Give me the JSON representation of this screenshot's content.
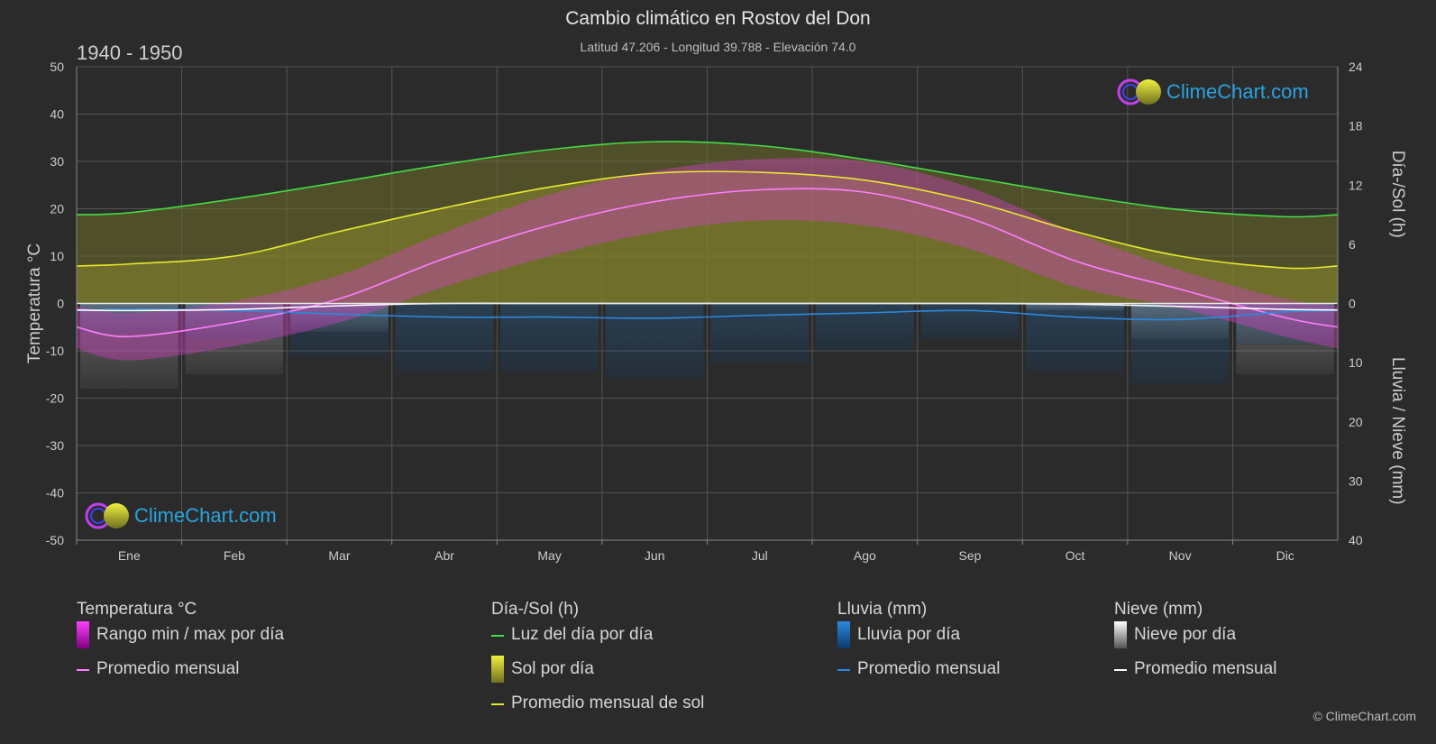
{
  "title": "Cambio climático en Rostov del Don",
  "subtitle": "Latitud 47.206 - Longitud 39.788 - Elevación 74.0",
  "year_range": "1940 - 1950",
  "logo_text": "ClimeChart.com",
  "copyright": "© ClimeChart.com",
  "colors": {
    "background": "#2b2b2b",
    "temp_range": "#e020e0",
    "temp_avg": "#ff7fff",
    "daylight": "#44dd44",
    "sun_fill": "#c8c832",
    "sun_avg": "#e8e830",
    "rain": "#1e78c8",
    "rain_avg": "#2a8ae0",
    "snow": "#b0b0b0",
    "snow_avg": "#ffffff"
  },
  "chart_data": {
    "type": "line",
    "months": [
      "Ene",
      "Feb",
      "Mar",
      "Abr",
      "May",
      "Jun",
      "Jul",
      "Ago",
      "Sep",
      "Oct",
      "Nov",
      "Dic"
    ],
    "left_axis": {
      "label": "Temperatura °C",
      "range": [
        -50,
        50
      ],
      "ticks": [
        50,
        40,
        30,
        20,
        10,
        0,
        -10,
        -20,
        -30,
        -40,
        -50
      ]
    },
    "right_axis_top": {
      "label": "Día-/Sol (h)",
      "range": [
        0,
        24
      ],
      "ticks": [
        24,
        18,
        12,
        6,
        0
      ]
    },
    "right_axis_bottom": {
      "label": "Lluvia / Nieve (mm)",
      "range": [
        0,
        40
      ],
      "ticks": [
        0,
        10,
        20,
        30,
        40
      ]
    },
    "series": [
      {
        "name": "Luz del día por día",
        "unit": "h",
        "values": [
          9.2,
          10.6,
          12.3,
          14.1,
          15.6,
          16.4,
          16.0,
          14.6,
          12.8,
          11.0,
          9.5,
          8.8
        ]
      },
      {
        "name": "Promedio mensual de sol",
        "unit": "h",
        "values": [
          4.0,
          4.8,
          7.3,
          9.7,
          11.8,
          13.2,
          13.3,
          12.5,
          10.4,
          7.3,
          4.8,
          3.6
        ]
      },
      {
        "name": "Temperatura promedio mensual",
        "unit": "°C",
        "values": [
          -7.0,
          -4.0,
          1.0,
          9.5,
          16.5,
          21.5,
          24.0,
          23.5,
          18.0,
          9.0,
          3.0,
          -3.0
        ]
      },
      {
        "name": "Temperatura máxima diaria",
        "unit": "°C",
        "values": [
          -2.0,
          0.5,
          6.0,
          15.0,
          23.0,
          28.0,
          30.5,
          30.0,
          24.5,
          15.0,
          7.0,
          1.0
        ]
      },
      {
        "name": "Temperatura mínima diaria",
        "unit": "°C",
        "values": [
          -12.0,
          -9.0,
          -4.0,
          3.5,
          10.0,
          15.0,
          17.5,
          16.5,
          11.5,
          3.5,
          -1.0,
          -7.0
        ]
      },
      {
        "name": "Lluvia promedio mensual",
        "unit": "mm",
        "values": [
          1.0,
          1.2,
          1.8,
          2.3,
          2.3,
          2.5,
          2.0,
          1.6,
          1.2,
          2.3,
          2.7,
          1.4
        ]
      },
      {
        "name": "Nieve promedio mensual",
        "unit": "mm",
        "values": [
          1.2,
          1.0,
          0.4,
          0,
          0,
          0,
          0,
          0,
          0,
          0.1,
          0.5,
          1.0
        ]
      }
    ]
  },
  "legend": {
    "temp": {
      "title": "Temperatura °C",
      "items": [
        "Rango min / max por día",
        "Promedio mensual"
      ]
    },
    "sun": {
      "title": "Día-/Sol (h)",
      "items": [
        "Luz del día por día",
        "Sol por día",
        "Promedio mensual de sol"
      ]
    },
    "rain": {
      "title": "Lluvia (mm)",
      "items": [
        "Lluvia por día",
        "Promedio mensual"
      ]
    },
    "snow": {
      "title": "Nieve (mm)",
      "items": [
        "Nieve por día",
        "Promedio mensual"
      ]
    }
  }
}
